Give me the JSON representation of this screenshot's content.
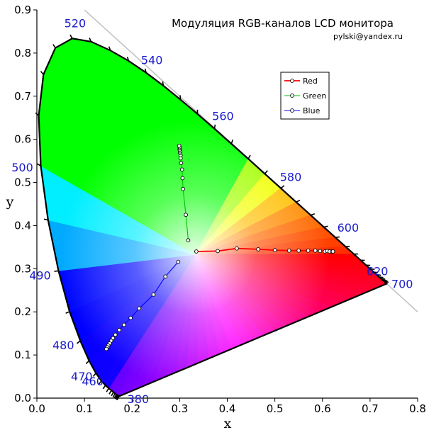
{
  "chart_data": {
    "type": "scatter",
    "title": "Модуляция RGB-каналов LCD монитора",
    "subtitle": "pylski@yandex.ru",
    "xlabel": "x",
    "ylabel": "y",
    "xlim": [
      0,
      0.8
    ],
    "ylim": [
      0,
      0.9
    ],
    "x_ticks": [
      "0.0",
      "0.1",
      "0.2",
      "0.3",
      "0.4",
      "0.5",
      "0.6",
      "0.7",
      "0.8"
    ],
    "y_ticks": [
      "0.0",
      "0.1",
      "0.2",
      "0.3",
      "0.4",
      "0.5",
      "0.6",
      "0.7",
      "0.8",
      "0.9"
    ],
    "grid": false,
    "legend_position": "top-right",
    "wavelength_labels": [
      {
        "text": "380",
        "x": 0.1741,
        "y": 0.005
      },
      {
        "text": "460",
        "x": 0.144,
        "y": 0.0297
      },
      {
        "text": "470",
        "x": 0.1241,
        "y": 0.0578
      },
      {
        "text": "480",
        "x": 0.0913,
        "y": 0.1327
      },
      {
        "text": "490",
        "x": 0.0454,
        "y": 0.295
      },
      {
        "text": "500",
        "x": 0.0082,
        "y": 0.5384
      },
      {
        "text": "520",
        "x": 0.0743,
        "y": 0.8338
      },
      {
        "text": "540",
        "x": 0.2296,
        "y": 0.7543
      },
      {
        "text": "560",
        "x": 0.3731,
        "y": 0.6245
      },
      {
        "text": "580",
        "x": 0.5125,
        "y": 0.4866
      },
      {
        "text": "600",
        "x": 0.627,
        "y": 0.3725
      },
      {
        "text": "620",
        "x": 0.6915,
        "y": 0.3083
      },
      {
        "text": "700",
        "x": 0.7347,
        "y": 0.2653
      }
    ],
    "series": [
      {
        "name": "Red",
        "color": "#ff0000",
        "x": [
          0.335,
          0.38,
          0.42,
          0.465,
          0.5,
          0.53,
          0.55,
          0.57,
          0.585,
          0.595,
          0.605,
          0.61,
          0.615,
          0.62,
          0.622
        ],
        "y": [
          0.34,
          0.341,
          0.347,
          0.345,
          0.343,
          0.342,
          0.342,
          0.342,
          0.342,
          0.341,
          0.34,
          0.341,
          0.34,
          0.34,
          0.34
        ]
      },
      {
        "name": "Green",
        "color": "#00c000",
        "x": [
          0.318,
          0.313,
          0.307,
          0.306,
          0.305,
          0.303,
          0.302,
          0.302,
          0.301,
          0.301,
          0.3,
          0.3,
          0.3,
          0.299
        ],
        "y": [
          0.366,
          0.425,
          0.485,
          0.51,
          0.53,
          0.545,
          0.556,
          0.563,
          0.568,
          0.572,
          0.576,
          0.579,
          0.582,
          0.585
        ]
      },
      {
        "name": "Blue",
        "color": "#0000ff",
        "x": [
          0.297,
          0.27,
          0.245,
          0.215,
          0.197,
          0.183,
          0.173,
          0.165,
          0.16,
          0.156,
          0.153,
          0.15,
          0.148,
          0.146
        ],
        "y": [
          0.316,
          0.282,
          0.24,
          0.208,
          0.186,
          0.17,
          0.158,
          0.147,
          0.139,
          0.133,
          0.127,
          0.122,
          0.118,
          0.114
        ]
      }
    ]
  }
}
